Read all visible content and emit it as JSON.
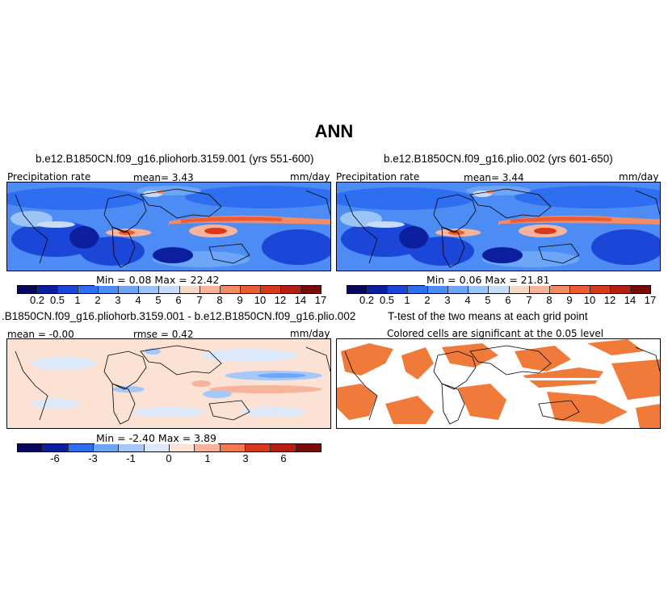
{
  "figure": {
    "title": "ANN",
    "panels": [
      {
        "title": "b.e12.B1850CN.f09_g16.pliohorb.3159.001 (yrs 551-600)",
        "left_label": "Precipitation rate",
        "mean_text": "mean=   3.43",
        "units": "mm/day",
        "minmax_text": "Min =   0.08  Max =  22.42",
        "colorbar_ticks": [
          "0.2",
          "0.5",
          "1",
          "2",
          "3",
          "4",
          "5",
          "6",
          "7",
          "8",
          "9",
          "10",
          "12",
          "14",
          "17"
        ]
      },
      {
        "title": "b.e12.B1850CN.f09_g16.plio.002 (yrs 601-650)",
        "left_label": "Precipitation rate",
        "mean_text": "mean=   3.44",
        "units": "mm/day",
        "minmax_text": "Min =   0.06  Max =  21.81",
        "colorbar_ticks": [
          "0.2",
          "0.5",
          "1",
          "2",
          "3",
          "4",
          "5",
          "6",
          "7",
          "8",
          "9",
          "10",
          "12",
          "14",
          "17"
        ]
      },
      {
        "title": ".B1850CN.f09_g16.pliohorb.3159.001 - b.e12.B1850CN.f09_g16.plio.002",
        "mean_text": "mean =  -0.00",
        "rmse_text": "rmse =   0.42",
        "units": "mm/day",
        "minmax_text": "Min =  -2.40  Max =   3.89",
        "colorbar_ticks": [
          "-6",
          "-3",
          "-1",
          "0",
          "1",
          "3",
          "6"
        ]
      },
      {
        "title": "T-test of the two means at each grid point",
        "subtitle": "Colored cells are significant at the 0.05 level"
      }
    ]
  },
  "colors": {
    "precip_scale": [
      "#08085e",
      "#0c1f9e",
      "#1b46d8",
      "#2e6ef0",
      "#4e8cf5",
      "#6ea6f7",
      "#9cc4f9",
      "#c8dcfa",
      "#f4d8c9",
      "#f8b49a",
      "#f48b64",
      "#ec5b33",
      "#d8391b",
      "#b51e10",
      "#7a0a0a"
    ],
    "diff_scale": [
      "#08085e",
      "#0c1f9e",
      "#2e6ef0",
      "#6ea6f7",
      "#a6c8f9",
      "#dbe9fb",
      "#fbe2d4",
      "#f8b49a",
      "#f07a4e",
      "#d8391b",
      "#b51e10",
      "#7a0a0a"
    ],
    "ttest_fill": "#f07a3a"
  }
}
